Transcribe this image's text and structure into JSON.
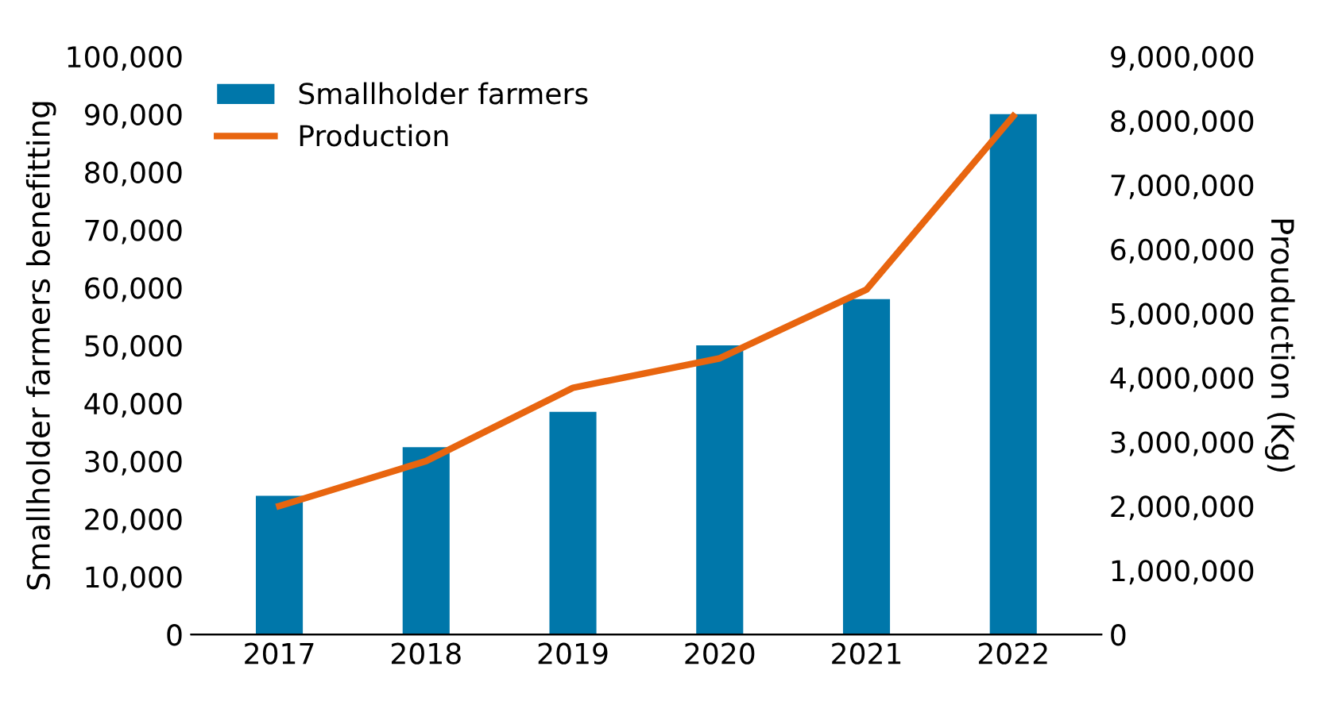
{
  "chart_data": {
    "type": "bar",
    "categories": [
      "2017",
      "2018",
      "2019",
      "2020",
      "2021",
      "2022"
    ],
    "ylabel": "Smallholder farmers benefitting",
    "y2label": "Prouduction (Kg)",
    "series": [
      {
        "name": "Smallholder farmers",
        "color": "#0077aa",
        "values": [
          24000,
          32400,
          38500,
          50000,
          58000,
          90000
        ]
      },
      {
        "name": "Production",
        "type": "line",
        "axis": "y2",
        "color": "#e8650f",
        "values": [
          2000000,
          2700000,
          3840000,
          4300000,
          5370000,
          8070000
        ]
      }
    ],
    "ylim": [
      0,
      100000
    ],
    "yticks": [
      0,
      {
        "value": 10000,
        "label": "10,000"
      },
      {
        "value": 20000,
        "label": "20,000"
      },
      {
        "value": 30000,
        "label": "30,000"
      },
      {
        "value": 40000,
        "label": "40,000"
      },
      {
        "value": 50000,
        "label": "50,000"
      },
      {
        "value": 60000,
        "label": "60,000"
      },
      {
        "value": 70000,
        "label": "70,000"
      },
      {
        "value": 80000,
        "label": "80,000"
      },
      {
        "value": 90000,
        "label": "90,000"
      },
      {
        "value": 100000,
        "label": "100,000"
      }
    ],
    "y2lim": [
      0,
      9000000
    ],
    "y2ticks": [
      0,
      {
        "value": 1000000,
        "label": "1,000,000"
      },
      {
        "value": 2000000,
        "label": "2,000,000"
      },
      {
        "value": 3000000,
        "label": "3,000,000"
      },
      {
        "value": 4000000,
        "label": "4,000,000"
      },
      {
        "value": 5000000,
        "label": "5,000,000"
      },
      {
        "value": 6000000,
        "label": "6,000,000"
      },
      {
        "value": 7000000,
        "label": "7,000,000"
      },
      {
        "value": 8000000,
        "label": "8,000,000"
      },
      {
        "value": 9000000,
        "label": "9,000,000"
      }
    ],
    "legend": "top left",
    "grid": false,
    "marker": "none",
    "line_style": "solid"
  }
}
